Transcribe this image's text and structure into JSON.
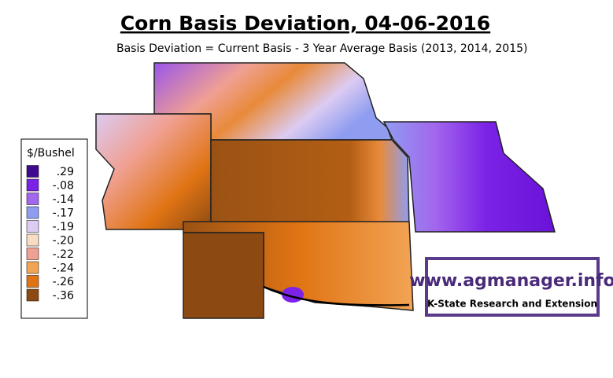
{
  "header": {
    "title": "Corn Basis Deviation, 04-06-2016",
    "subtitle": "Basis Deviation = Current Basis - 3 Year Average Basis (2013, 2014, 2015)"
  },
  "legend": {
    "title": "$/Bushel",
    "items": [
      {
        "label": ".29",
        "color": "#3e0a8e"
      },
      {
        "label": "-.08",
        "color": "#7b22e6"
      },
      {
        "label": "-.14",
        "color": "#a366ee"
      },
      {
        "label": "-.17",
        "color": "#8f9df0"
      },
      {
        "label": "-.19",
        "color": "#dccbf2"
      },
      {
        "label": "-.20",
        "color": "#f9dcc4"
      },
      {
        "label": "-.22",
        "color": "#f0a092"
      },
      {
        "label": "-.24",
        "color": "#f2a455"
      },
      {
        "label": "-.26",
        "color": "#e07414"
      },
      {
        "label": "-.36",
        "color": "#8c4a12"
      }
    ]
  },
  "logo": {
    "url": "www.agmanager.info",
    "org": "K-State Research and Extension"
  }
}
